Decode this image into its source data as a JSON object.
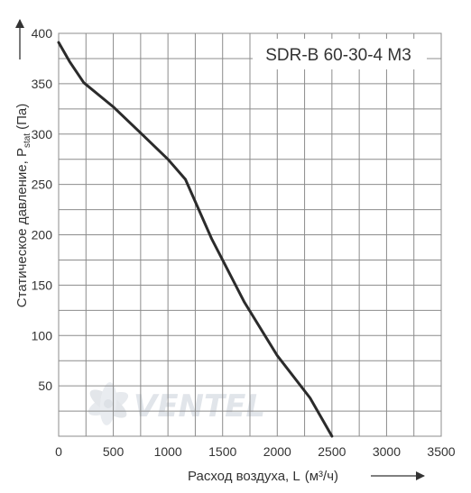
{
  "chart_data": {
    "type": "line",
    "title": "SDR-B 60-30-4 M3",
    "xlabel_main": "Расход воздуха, L",
    "xlabel_unit": "(м³/ч)",
    "ylabel_main": "Статическое давление, P",
    "ylabel_sub": "stat",
    "ylabel_unit": "(Па)",
    "xlim": [
      0,
      3500
    ],
    "ylim": [
      0,
      400
    ],
    "x_ticks": [
      0,
      500,
      1000,
      1500,
      2000,
      2500,
      3000,
      3500
    ],
    "y_ticks": [
      50,
      100,
      150,
      200,
      250,
      300,
      350,
      400
    ],
    "x_minor_step": 250,
    "y_minor_step": 25,
    "grid": true,
    "series": [
      {
        "x": [
          0,
          100,
          230,
          500,
          750,
          1000,
          1160,
          1400,
          1700,
          2000,
          2300,
          2500
        ],
        "y": [
          391,
          372,
          351,
          327,
          301,
          275,
          255,
          196,
          133,
          80,
          38,
          0
        ]
      }
    ],
    "watermark": "VENTEL",
    "colors": {
      "line": "#2b2b2b",
      "grid": "#8c8c8c",
      "axis": "#333333",
      "watermark": "#e1e5ea"
    }
  }
}
